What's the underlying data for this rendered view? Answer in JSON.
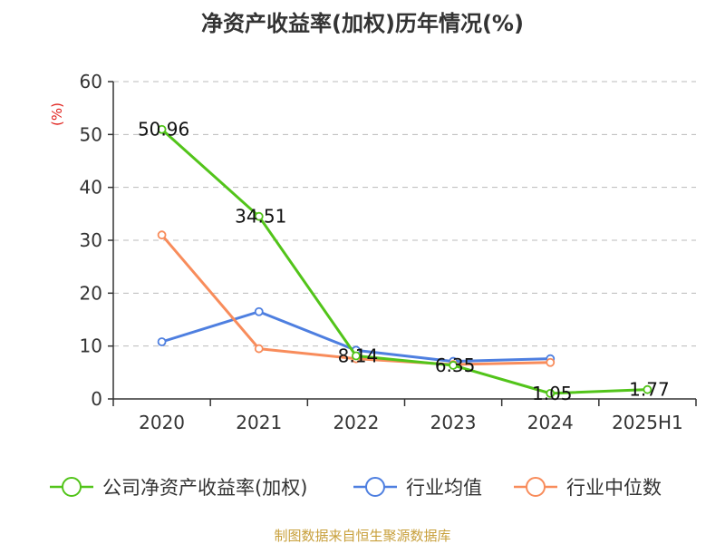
{
  "colors": {
    "series_0": "#52c41a",
    "series_1": "#4e7fe0",
    "series_2": "#f88c5b",
    "title": "#333333",
    "unit": "#e0201b",
    "source": "#c8a03c",
    "grid": "#bbbbbb",
    "axis": "#333333"
  },
  "chart_data": {
    "type": "line",
    "title": "净资产收益率(加权)历年情况(%)",
    "ylabel": "(%)",
    "xlabel": "",
    "categories": [
      "2020",
      "2021",
      "2022",
      "2023",
      "2024",
      "2025H1"
    ],
    "yticks": [
      "0",
      "10",
      "20",
      "30",
      "40",
      "50",
      "60"
    ],
    "ylim": [
      0,
      60
    ],
    "grid": true,
    "legend_position": "bottom",
    "series": [
      {
        "name": "公司净资产收益率(加权)",
        "values": [
          50.96,
          34.51,
          8.14,
          6.35,
          1.05,
          1.77
        ],
        "labels": [
          "50.96",
          "34.51",
          "8.14",
          "6.35",
          "1.05",
          "1.77"
        ]
      },
      {
        "name": "行业均值",
        "values": [
          10.8,
          16.5,
          9.2,
          7.1,
          7.6,
          null
        ]
      },
      {
        "name": "行业中位数",
        "values": [
          31.0,
          9.5,
          7.6,
          6.5,
          6.9,
          null
        ]
      }
    ]
  },
  "footer": {
    "source": "制图数据来自恒生聚源数据库"
  }
}
